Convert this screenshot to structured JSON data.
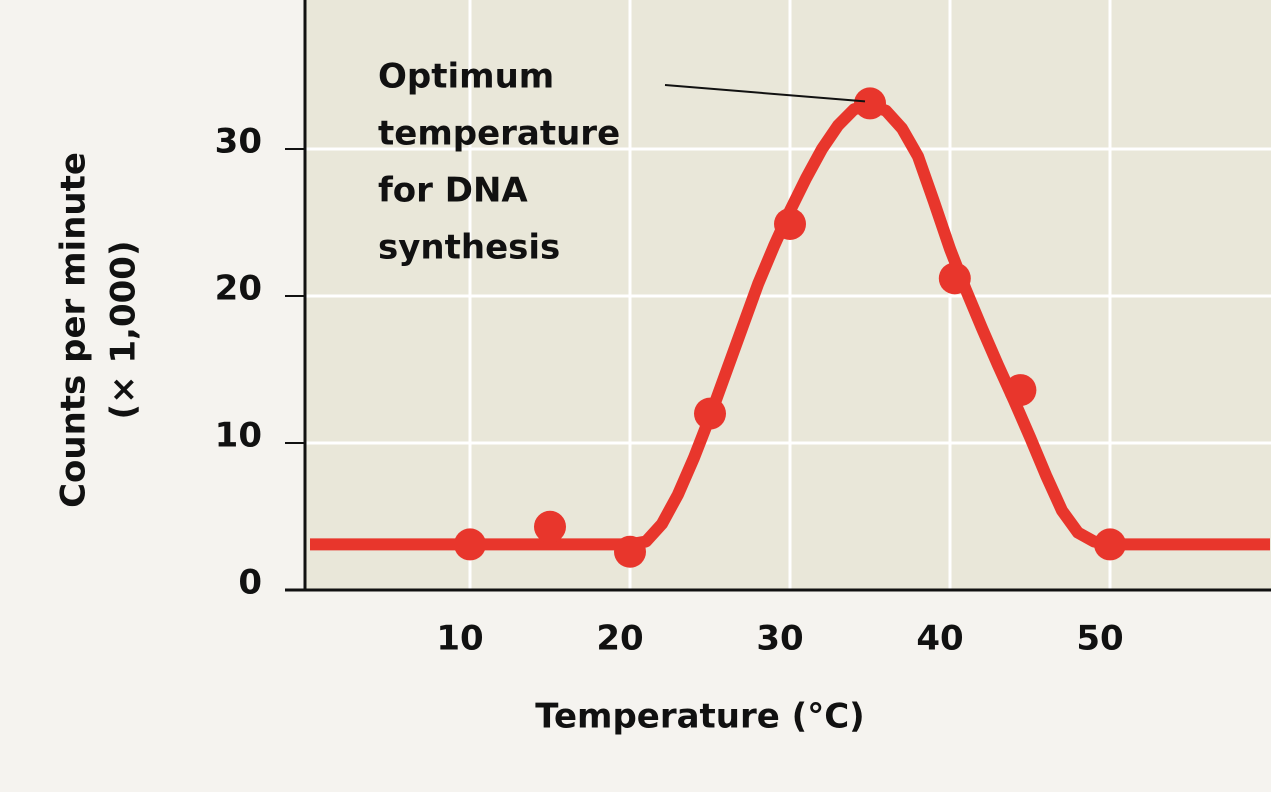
{
  "chart_data": {
    "type": "scatter",
    "x_label": "Temperature (°C)",
    "y_label": [
      "Counts per minute",
      "(× 1,000)"
    ],
    "annotation": [
      "Optimum",
      "temperature",
      "for DNA",
      "synthesis"
    ],
    "xlim": [
      0,
      60
    ],
    "xticks": [
      10,
      20,
      30,
      40,
      50
    ],
    "ylim": [
      0,
      40
    ],
    "yticks": [
      0,
      10,
      20,
      30
    ],
    "grid": true,
    "series": [
      {
        "mode": "markers",
        "color": "#e8362c",
        "x": [
          10,
          15,
          20,
          25,
          30,
          35,
          40.3,
          44.4,
          50
        ],
        "values": [
          3.1,
          4.3,
          2.6,
          12,
          24.9,
          33.1,
          21.2,
          13.6,
          3.1
        ]
      },
      {
        "mode": "line",
        "color": "#e8362c",
        "x": [
          0,
          20,
          21,
          22,
          23,
          24,
          25,
          26,
          27,
          28,
          29,
          30,
          31,
          32,
          33,
          34,
          35,
          36,
          37,
          38,
          39,
          40,
          41,
          42,
          43,
          44,
          45,
          46,
          47,
          48,
          49,
          50,
          60
        ],
        "values": [
          3.1,
          3.1,
          3.3,
          4.5,
          6.5,
          9,
          11.8,
          14.8,
          17.8,
          20.8,
          23.4,
          25.8,
          28,
          30,
          31.6,
          32.7,
          33,
          32.6,
          31.4,
          29.5,
          26.4,
          23.2,
          20.4,
          17.8,
          15.3,
          12.9,
          10.4,
          7.8,
          5.4,
          3.9,
          3.3,
          3.1,
          3.1
        ]
      }
    ]
  }
}
